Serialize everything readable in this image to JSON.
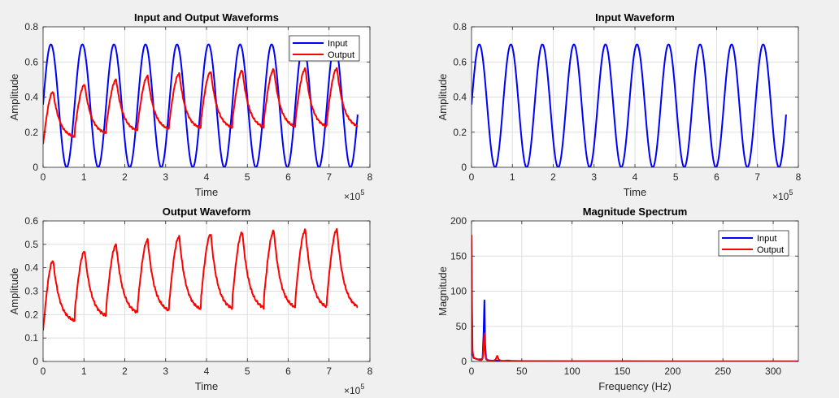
{
  "figure": {
    "background": "#f0f0f0"
  },
  "colors": {
    "input": "#0000ff",
    "output": "#ff0000",
    "grid": "#dfdfdf",
    "axis": "#262626"
  },
  "chart_data": [
    {
      "id": "ax1",
      "type": "line",
      "title": "Input and Output Waveforms",
      "xlabel": "Time",
      "ylabel": "Amplitude",
      "xlim": [
        0,
        8
      ],
      "ylim": [
        0,
        0.8
      ],
      "xticks": [
        0,
        1,
        2,
        3,
        4,
        5,
        6,
        7,
        8
      ],
      "yticks": [
        0,
        0.2,
        0.4,
        0.6,
        0.8
      ],
      "xtick_labels": [
        "0",
        "1",
        "2",
        "3",
        "4",
        "5",
        "6",
        "7",
        "8"
      ],
      "ytick_labels": [
        "0",
        "0.2",
        "0.4",
        "0.6",
        "0.8"
      ],
      "x_exponent": {
        "base": "×10",
        "power": "5"
      },
      "grid": true,
      "legend": {
        "position": "top-right",
        "entries": [
          "Input",
          "Output"
        ]
      },
      "series": [
        {
          "name": "Input",
          "color": "#0000ff",
          "kind": "input"
        },
        {
          "name": "Output",
          "color": "#ff0000",
          "kind": "output"
        }
      ]
    },
    {
      "id": "ax2",
      "type": "line",
      "title": "Input Waveform",
      "xlabel": "Time",
      "ylabel": "Amplitude",
      "xlim": [
        0,
        8
      ],
      "ylim": [
        0,
        0.8
      ],
      "xticks": [
        0,
        1,
        2,
        3,
        4,
        5,
        6,
        7,
        8
      ],
      "yticks": [
        0,
        0.2,
        0.4,
        0.6,
        0.8
      ],
      "xtick_labels": [
        "0",
        "1",
        "2",
        "3",
        "4",
        "5",
        "6",
        "7",
        "8"
      ],
      "ytick_labels": [
        "0",
        "0.2",
        "0.4",
        "0.6",
        "0.8"
      ],
      "x_exponent": {
        "base": "×10",
        "power": "5"
      },
      "grid": true,
      "legend": null,
      "series": [
        {
          "name": "Input",
          "color": "#0000ff",
          "kind": "input"
        }
      ]
    },
    {
      "id": "ax3",
      "type": "line",
      "title": "Output Waveform",
      "xlabel": "Time",
      "ylabel": "Amplitude",
      "xlim": [
        0,
        8
      ],
      "ylim": [
        0,
        0.6
      ],
      "xticks": [
        0,
        1,
        2,
        3,
        4,
        5,
        6,
        7,
        8
      ],
      "yticks": [
        0,
        0.1,
        0.2,
        0.3,
        0.4,
        0.5,
        0.6
      ],
      "xtick_labels": [
        "0",
        "1",
        "2",
        "3",
        "4",
        "5",
        "6",
        "7",
        "8"
      ],
      "ytick_labels": [
        "0",
        "0.1",
        "0.2",
        "0.3",
        "0.4",
        "0.5",
        "0.6"
      ],
      "x_exponent": {
        "base": "×10",
        "power": "5"
      },
      "grid": true,
      "legend": null,
      "series": [
        {
          "name": "Output",
          "color": "#ff0000",
          "kind": "output"
        }
      ]
    },
    {
      "id": "ax4",
      "type": "line",
      "title": "Magnitude Spectrum",
      "xlabel": "Frequency (Hz)",
      "ylabel": "Magnitude",
      "xlim": [
        0,
        325
      ],
      "ylim": [
        0,
        200
      ],
      "xticks": [
        0,
        50,
        100,
        150,
        200,
        250,
        300
      ],
      "yticks": [
        0,
        50,
        100,
        150,
        200
      ],
      "xtick_labels": [
        "0",
        "50",
        "100",
        "150",
        "200",
        "250",
        "300"
      ],
      "ytick_labels": [
        "0",
        "50",
        "100",
        "150",
        "200"
      ],
      "x_exponent": null,
      "grid": true,
      "legend": {
        "position": "top-right",
        "entries": [
          "Input",
          "Output"
        ]
      },
      "series": [
        {
          "name": "Input",
          "color": "#0000ff",
          "x": [
            0,
            0.5,
            1,
            2,
            4,
            6,
            8,
            10,
            11,
            12,
            12.8,
            13.5,
            14.5,
            16,
            18,
            22,
            26,
            30,
            40,
            60,
            100,
            200,
            325
          ],
          "y": [
            175,
            40,
            10,
            5,
            4,
            3,
            3,
            3,
            5,
            40,
            87,
            25,
            4,
            2,
            1.5,
            1,
            1,
            0.8,
            0.6,
            0.4,
            0.3,
            0.2,
            0.2
          ]
        },
        {
          "name": "Output",
          "color": "#ff0000",
          "x": [
            0,
            0.5,
            1,
            2,
            4,
            6,
            8,
            10,
            11,
            12,
            12.8,
            13.5,
            14.5,
            16,
            18,
            20,
            22,
            24,
            25.5,
            27,
            29,
            32,
            36,
            40,
            60,
            100,
            200,
            325
          ],
          "y": [
            180,
            80,
            15,
            6,
            4,
            3,
            2,
            2,
            4,
            20,
            40,
            12,
            3,
            1.5,
            1,
            1,
            1,
            3,
            8,
            3,
            1,
            0.8,
            1.5,
            0.8,
            0.5,
            0.3,
            0.2,
            0.2
          ]
        }
      ]
    }
  ]
}
